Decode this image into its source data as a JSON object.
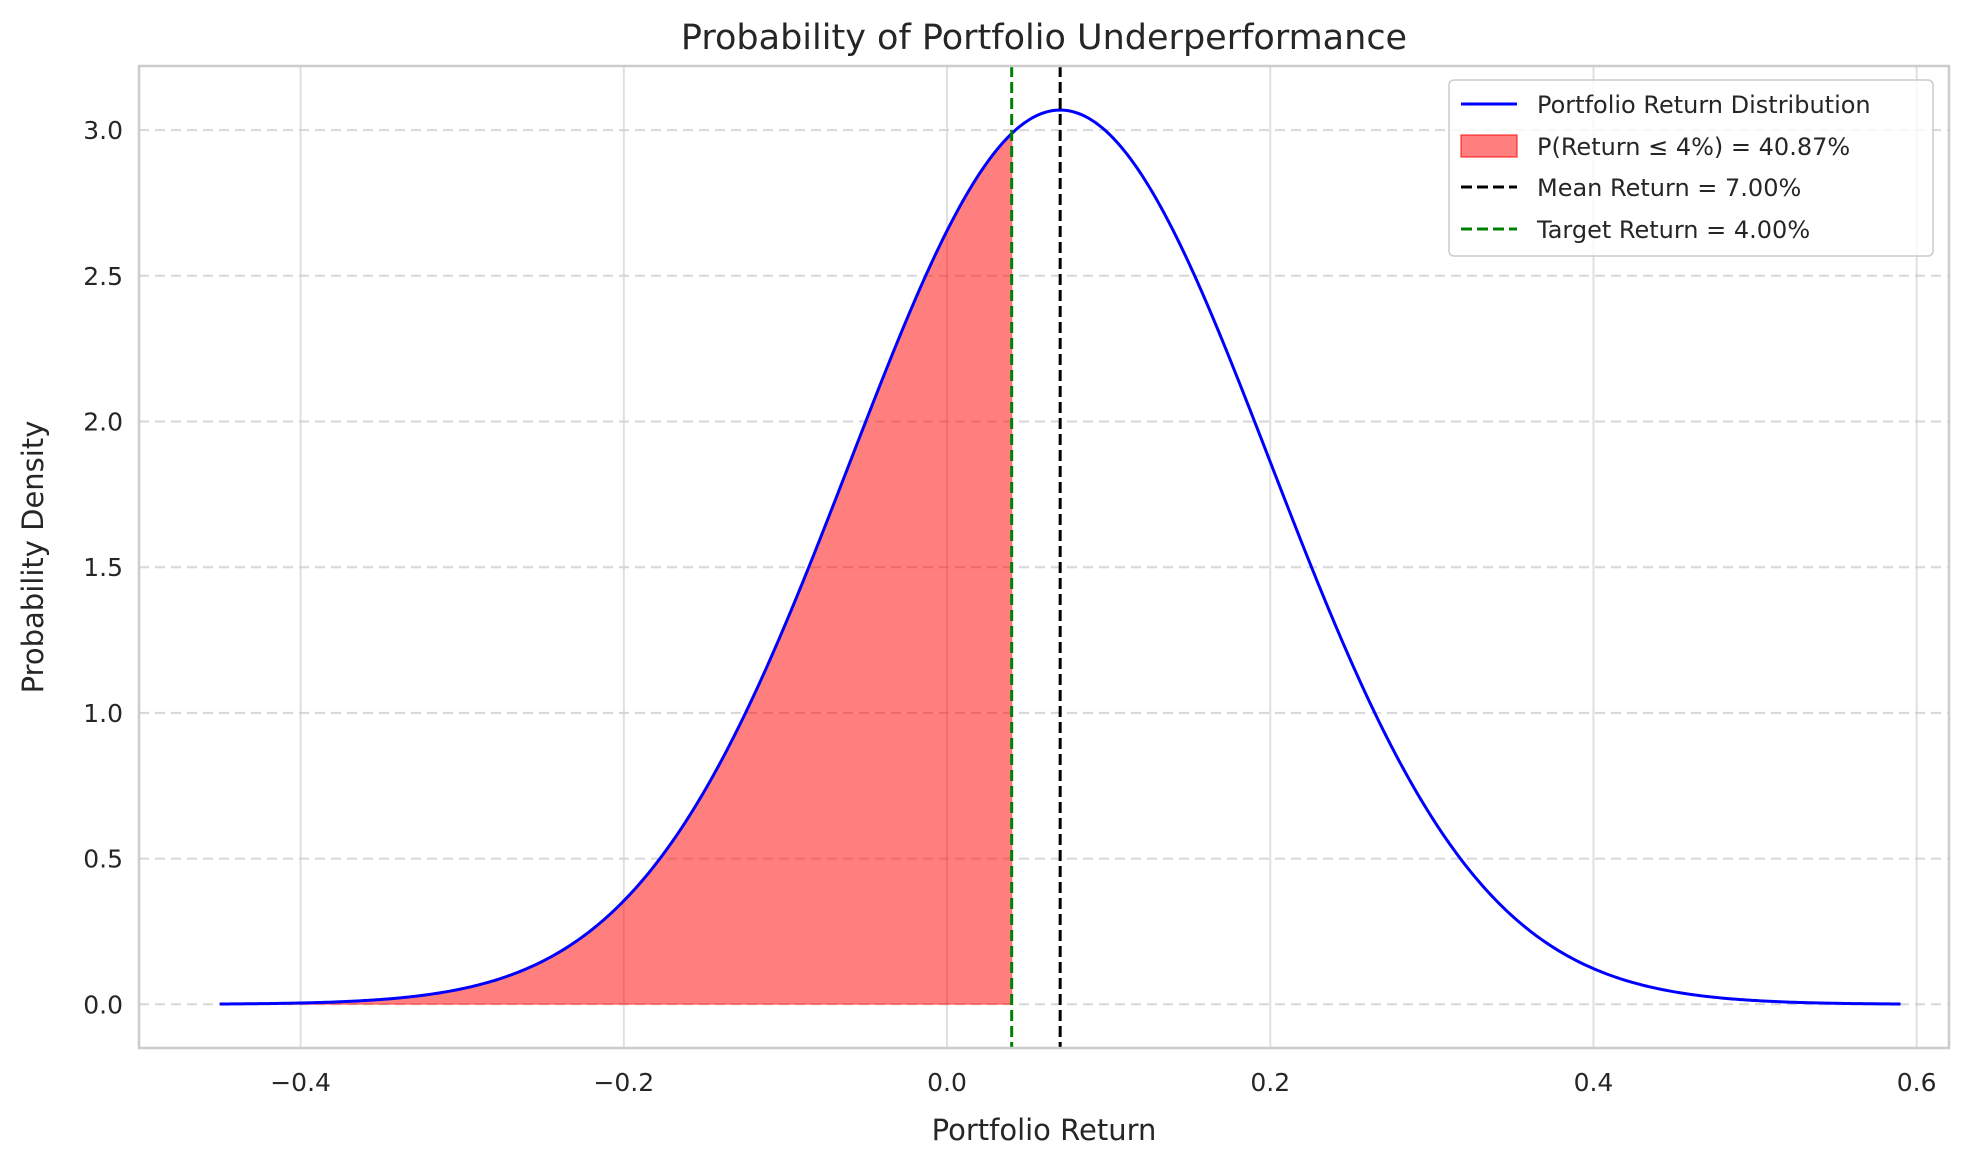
{
  "chart_data": {
    "type": "line",
    "title": "Probability of Portfolio Underperformance",
    "xlabel": "Portfolio Return",
    "ylabel": "Probability Density",
    "xlim": [
      -0.5,
      0.62
    ],
    "ylim": [
      -0.15,
      3.22
    ],
    "x_ticks": [
      -0.4,
      -0.2,
      0.0,
      0.2,
      0.4,
      0.6
    ],
    "x_tick_labels": [
      "−0.4",
      "−0.2",
      "0.0",
      "0.2",
      "0.4",
      "0.6"
    ],
    "y_ticks": [
      0.0,
      0.5,
      1.0,
      1.5,
      2.0,
      2.5,
      3.0
    ],
    "y_tick_labels": [
      "0.0",
      "0.5",
      "1.0",
      "1.5",
      "2.0",
      "2.5",
      "3.0"
    ],
    "grid": true,
    "legend_position": "top-right",
    "distribution": {
      "name": "Portfolio Return Distribution",
      "kind": "normal",
      "mean": 0.07,
      "std": 0.13,
      "x_range": [
        -0.45,
        0.59
      ],
      "color": "#0000ff"
    },
    "shaded_region": {
      "name": "P(Return ≤ 4%) = 40.87%",
      "x_max": 0.04,
      "probability": 0.4087,
      "color": "#ff0000",
      "opacity": 0.5
    },
    "vlines": [
      {
        "name": "Mean Return = 7.00%",
        "x": 0.07,
        "color": "#000000",
        "style": "dashed"
      },
      {
        "name": "Target Return = 4.00%",
        "x": 0.04,
        "color": "#008000",
        "style": "dashed"
      }
    ]
  }
}
